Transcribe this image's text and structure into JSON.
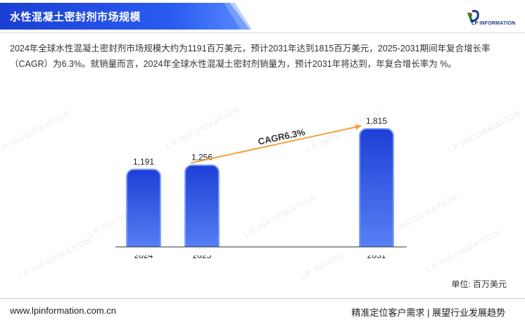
{
  "header": {
    "title": "水性混凝土密封剂市场规模",
    "logo_text": "LP INFORMATION"
  },
  "description": "2024年全球水性混凝土密封剂市场规模大约为1191百万美元，预计2031年达到1815百万美元，2025-2031期间年复合增长率（CAGR）为6.3%。就销量而言，2024年全球水性混凝土密封剂销量为，预计2031年将达到，年复合增长率为 %。",
  "chart_data": {
    "type": "bar",
    "categories": [
      "2024",
      "2025",
      "2031"
    ],
    "values": [
      1191,
      1256,
      1815
    ],
    "value_labels": [
      "1,191",
      "1,256",
      "1,815"
    ],
    "annotation": "CAGR6.3%",
    "ylim": [
      0,
      2000
    ],
    "bar_color_top": "#1e3fd6",
    "bar_color_bottom": "#5b84f5",
    "arrow_color": "#f2a33a"
  },
  "unit_label": "单位: 百万美元",
  "footer": {
    "url": "www.lpinformation.com.cn",
    "slogan": "精准定位客户需求 | 展望行业发展趋势"
  },
  "watermark": "LP INFORMATION"
}
